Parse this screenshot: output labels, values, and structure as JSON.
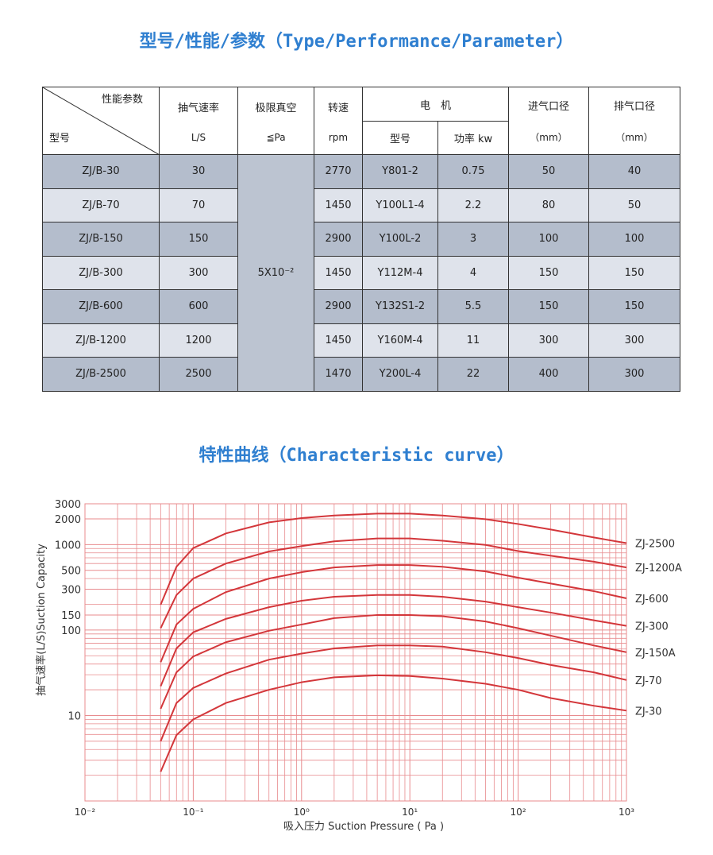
{
  "header": {
    "title": "型号/性能/参数（Type/Performance/Parameter）"
  },
  "table": {
    "corner_top": "性能参数",
    "corner_bottom": "型号",
    "columns": [
      {
        "top": "抽气速率",
        "bottom": "L/S"
      },
      {
        "top": "极限真空",
        "bottom": "≦Pa"
      },
      {
        "top": "转速",
        "bottom": "rpm"
      },
      {
        "top": "进气口径",
        "bottom": "（mm）"
      },
      {
        "top": "排气口径",
        "bottom": "（mm）"
      }
    ],
    "motor": "电　机",
    "motor_columns": [
      "型号",
      "功率 kw"
    ],
    "vacuum": "5X10⁻²",
    "rows": [
      [
        "ZJ/B-30",
        "30",
        "2770",
        "Y801-2",
        "0.75",
        "50",
        "40"
      ],
      [
        "ZJ/B-70",
        "70",
        "1450",
        "Y100L1-4",
        "2.2",
        "80",
        "50"
      ],
      [
        "ZJ/B-150",
        "150",
        "2900",
        "Y100L-2",
        "3",
        "100",
        "100"
      ],
      [
        "ZJ/B-300",
        "300",
        "1450",
        "Y112M-4",
        "4",
        "150",
        "150"
      ],
      [
        "ZJ/B-600",
        "600",
        "2900",
        "Y132S1-2",
        "5.5",
        "150",
        "150"
      ],
      [
        "ZJ/B-1200",
        "1200",
        "1450",
        "Y160M-4",
        "11",
        "300",
        "300"
      ],
      [
        "ZJ/B-2500",
        "2500",
        "1470",
        "Y200L-4",
        "22",
        "400",
        "300"
      ]
    ]
  },
  "chart_data": {
    "type": "line",
    "title": "特性曲线（Characteristic curve）",
    "x_label": "吸入压力 Suction Pressure ( Pa )",
    "y_label": "抽气速率(L/S)Suction Capacity",
    "xscale": "log",
    "yscale": "log",
    "grid": true,
    "xlim": [
      0.01,
      1000
    ],
    "ylim": [
      1,
      3000
    ],
    "xticks": [
      {
        "value": 0.01,
        "label": "10⁻²"
      },
      {
        "value": 0.1,
        "label": "10⁻¹"
      },
      {
        "value": 1,
        "label": "10⁰"
      },
      {
        "value": 10,
        "label": "10¹"
      },
      {
        "value": 100,
        "label": "10²"
      },
      {
        "value": 1000,
        "label": "10³"
      }
    ],
    "yticks": [
      3000,
      2000,
      1000,
      500,
      300,
      150,
      100,
      10
    ],
    "xminor": [
      0.02,
      0.03,
      0.04,
      0.05,
      0.06,
      0.07,
      0.08,
      0.09,
      0.2,
      0.3,
      0.4,
      0.5,
      0.6,
      0.7,
      0.8,
      0.9,
      2,
      3,
      4,
      5,
      6,
      7,
      8,
      9,
      20,
      30,
      40,
      50,
      60,
      70,
      80,
      90,
      200,
      300,
      400,
      500,
      600,
      700,
      800,
      900
    ],
    "yminor": [
      2,
      3,
      4,
      5,
      6,
      7,
      8,
      9,
      20,
      30,
      40,
      50,
      60,
      70,
      80,
      90,
      200,
      400,
      600,
      700,
      800,
      900
    ],
    "x": [
      0.05,
      0.07,
      0.1,
      0.2,
      0.5,
      1,
      2,
      5,
      10,
      20,
      50,
      100,
      200,
      500,
      1000
    ],
    "series": [
      {
        "name": "ZJ-2500",
        "color": "#d3363a",
        "values": [
          198,
          550,
          910,
          1350,
          1820,
          2040,
          2190,
          2300,
          2300,
          2190,
          1980,
          1740,
          1500,
          1210,
          1040
        ]
      },
      {
        "name": "ZJ-1200A",
        "color": "#d3363a",
        "values": [
          105,
          257,
          400,
          600,
          830,
          960,
          1090,
          1180,
          1180,
          1110,
          990,
          840,
          740,
          630,
          540
        ]
      },
      {
        "name": "ZJ-600",
        "color": "#d3363a",
        "values": [
          42,
          116,
          177,
          278,
          400,
          475,
          540,
          575,
          575,
          550,
          485,
          410,
          350,
          285,
          235
        ]
      },
      {
        "name": "ZJ-300",
        "color": "#d3363a",
        "values": [
          22,
          61,
          94,
          135,
          185,
          220,
          245,
          257,
          257,
          245,
          215,
          185,
          160,
          130,
          112
        ]
      },
      {
        "name": "ZJ-150A",
        "color": "#d3363a",
        "values": [
          12,
          32,
          49,
          72,
          98,
          116,
          138,
          150,
          150,
          145,
          126,
          105,
          86,
          66,
          55
        ]
      },
      {
        "name": "ZJ-70",
        "color": "#d3363a",
        "values": [
          5,
          14,
          21,
          31,
          45,
          53,
          61,
          66,
          66,
          64,
          55,
          47,
          39,
          32,
          26
        ]
      },
      {
        "name": "ZJ-30",
        "color": "#d3363a",
        "values": [
          2.2,
          5.9,
          9,
          14,
          20,
          24.5,
          28,
          29.5,
          29,
          27,
          23.5,
          20,
          16,
          13,
          11.4
        ]
      }
    ]
  }
}
